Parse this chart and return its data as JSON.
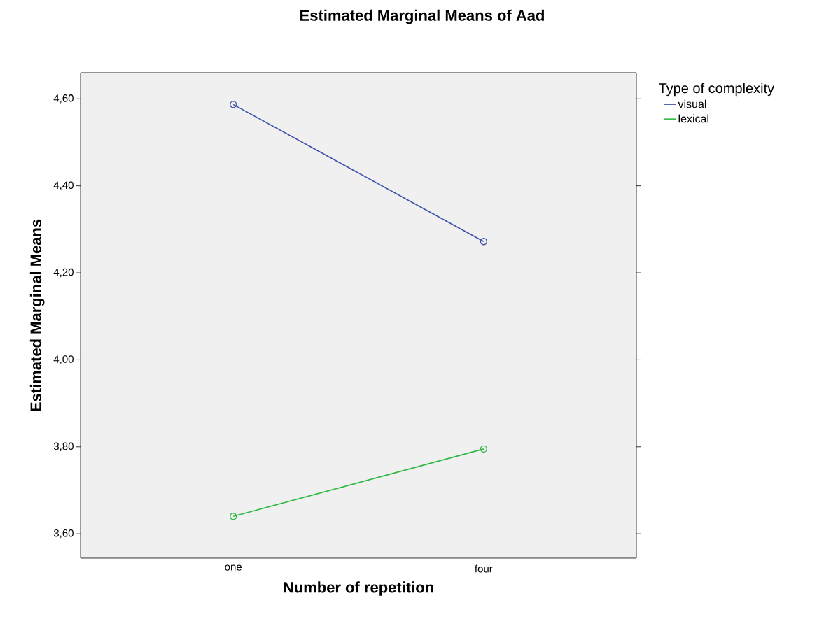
{
  "chart_data": {
    "type": "line",
    "title": "Estimated Marginal Means of Aad",
    "xlabel": "Number of repetition",
    "ylabel": "Estimated Marginal Means",
    "legend_title": "Type of complexity",
    "legend": "right",
    "marker": "circle",
    "line_style": "solid",
    "grid": false,
    "categories": [
      "one",
      "four"
    ],
    "series": [
      {
        "name": "visual",
        "color": "#3f51a8",
        "values": [
          4.587,
          4.272
        ]
      },
      {
        "name": "lexical",
        "color": "#2eb843",
        "values": [
          3.64,
          3.795
        ]
      }
    ],
    "ylim": [
      3.544,
      4.66
    ],
    "yticks": [
      {
        "value": 3.6,
        "label": "3,60"
      },
      {
        "value": 3.8,
        "label": "3,80"
      },
      {
        "value": 4.0,
        "label": "4,00"
      },
      {
        "value": 4.2,
        "label": "4,20"
      },
      {
        "value": 4.4,
        "label": "4,40"
      },
      {
        "value": 4.6,
        "label": "4,60"
      }
    ]
  }
}
